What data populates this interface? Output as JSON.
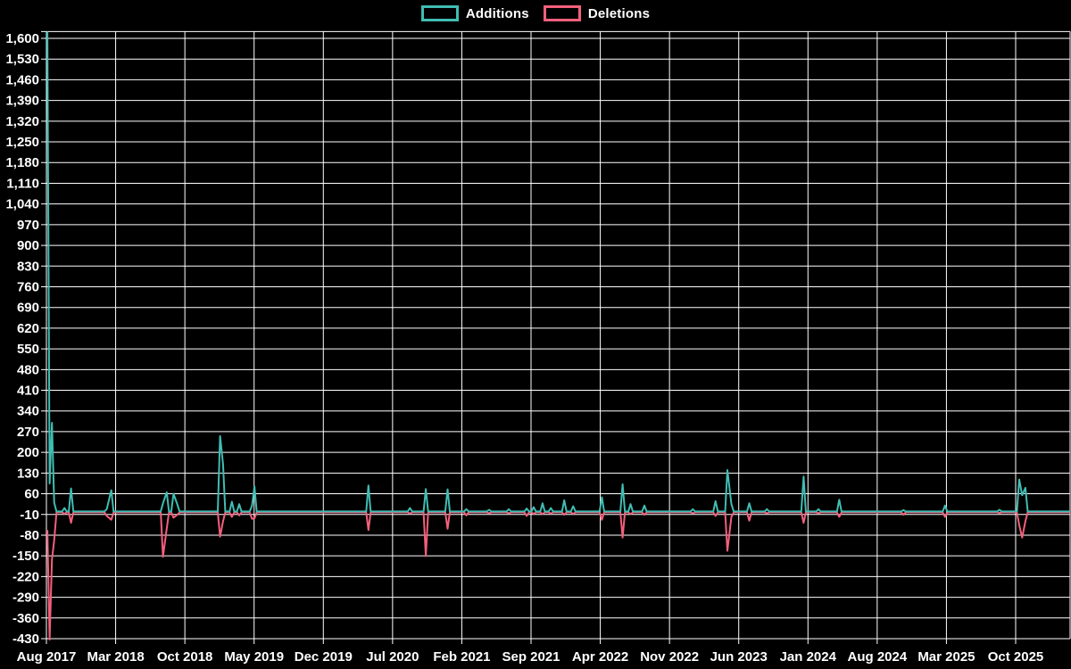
{
  "legend": {
    "items": [
      {
        "label": "Additions",
        "color": "#40bdb3"
      },
      {
        "label": "Deletions",
        "color": "#f4607c"
      }
    ]
  },
  "colors": {
    "background": "#000000",
    "grid": "#ffffff",
    "text": "#ffffff",
    "additions": "#40bdb3",
    "deletions": "#f4607c"
  },
  "chart_data": {
    "type": "line",
    "title": "",
    "xlabel": "",
    "ylabel": "",
    "grid": true,
    "legend_position": "top-center",
    "x_axis": {
      "start": "2017-08",
      "months_per_tick": 7,
      "tick_labels": [
        "Aug 2017",
        "Mar 2018",
        "Oct 2018",
        "May 2019",
        "Dec 2019",
        "Jul 2020",
        "Feb 2021",
        "Sep 2021",
        "Apr 2022",
        "Nov 2022",
        "Jun 2023",
        "Jan 2024",
        "Aug 2024",
        "Mar 2025",
        "Oct 2025"
      ]
    },
    "y_axis": {
      "max": 1623,
      "min": -430,
      "tick_step": 70,
      "tick_labels": [
        "1,600",
        "1,530",
        "1,460",
        "1,390",
        "1,320",
        "1,250",
        "1,180",
        "1,110",
        "1,040",
        "970",
        "900",
        "830",
        "760",
        "690",
        "620",
        "550",
        "480",
        "410",
        "340",
        "270",
        "200",
        "130",
        "60",
        "-10",
        "-80",
        "-150",
        "-220",
        "-290",
        "-360",
        "-430"
      ]
    },
    "series": [
      {
        "name": "Additions",
        "key": "a",
        "color": "#40bdb3"
      },
      {
        "name": "Deletions",
        "key": "d",
        "color": "#f4607c"
      }
    ],
    "unlisted_weeks_value": 0,
    "weekly_points": [
      {
        "date": "2017-08-04",
        "a": 1623,
        "d": -60
      },
      {
        "date": "2017-08-11",
        "a": 95,
        "d": -430
      },
      {
        "date": "2017-08-18",
        "a": 300,
        "d": -160
      },
      {
        "date": "2017-08-25",
        "a": 30,
        "d": -95
      },
      {
        "date": "2017-09-26",
        "a": 12,
        "d": -5
      },
      {
        "date": "2017-10-16",
        "a": 78,
        "d": -35
      },
      {
        "date": "2018-02-04",
        "a": 8,
        "d": -12
      },
      {
        "date": "2018-02-18",
        "a": 72,
        "d": -25
      },
      {
        "date": "2018-07-25",
        "a": 28,
        "d": -150
      },
      {
        "date": "2018-08-06",
        "a": 65,
        "d": -55
      },
      {
        "date": "2018-08-27",
        "a": 60,
        "d": -18
      },
      {
        "date": "2018-09-08",
        "a": 25,
        "d": -8
      },
      {
        "date": "2019-01-18",
        "a": 255,
        "d": -82
      },
      {
        "date": "2019-01-27",
        "a": 160,
        "d": -30
      },
      {
        "date": "2019-02-24",
        "a": 33,
        "d": -15
      },
      {
        "date": "2019-03-16",
        "a": 25,
        "d": -10
      },
      {
        "date": "2019-04-25",
        "a": 20,
        "d": -22
      },
      {
        "date": "2019-05-02",
        "a": 85,
        "d": -20
      },
      {
        "date": "2020-04-18",
        "a": 88,
        "d": -60
      },
      {
        "date": "2020-08-24",
        "a": 12,
        "d": -4
      },
      {
        "date": "2020-10-12",
        "a": 76,
        "d": -148
      },
      {
        "date": "2020-12-18",
        "a": 75,
        "d": -55
      },
      {
        "date": "2021-02-15",
        "a": 8,
        "d": -10
      },
      {
        "date": "2021-04-24",
        "a": 6,
        "d": -3
      },
      {
        "date": "2021-06-24",
        "a": 8,
        "d": -3
      },
      {
        "date": "2021-08-18",
        "a": 10,
        "d": -12
      },
      {
        "date": "2021-09-09",
        "a": 15,
        "d": -5
      },
      {
        "date": "2021-10-06",
        "a": 28,
        "d": -6
      },
      {
        "date": "2021-11-01",
        "a": 12,
        "d": -4
      },
      {
        "date": "2021-12-12",
        "a": 38,
        "d": -8
      },
      {
        "date": "2022-01-09",
        "a": 18,
        "d": -5
      },
      {
        "date": "2022-04-06",
        "a": 48,
        "d": -25
      },
      {
        "date": "2022-06-09",
        "a": 92,
        "d": -85
      },
      {
        "date": "2022-07-03",
        "a": 25,
        "d": -6
      },
      {
        "date": "2022-08-15",
        "a": 20,
        "d": -8
      },
      {
        "date": "2023-01-12",
        "a": 8,
        "d": -3
      },
      {
        "date": "2023-03-21",
        "a": 35,
        "d": -12
      },
      {
        "date": "2023-04-27",
        "a": 140,
        "d": -130
      },
      {
        "date": "2023-05-09",
        "a": 25,
        "d": -15
      },
      {
        "date": "2023-07-03",
        "a": 28,
        "d": -28
      },
      {
        "date": "2023-08-27",
        "a": 8,
        "d": -3
      },
      {
        "date": "2023-12-18",
        "a": 118,
        "d": -35
      },
      {
        "date": "2024-02-03",
        "a": 8,
        "d": -3
      },
      {
        "date": "2024-04-06",
        "a": 40,
        "d": -15
      },
      {
        "date": "2024-10-21",
        "a": 5,
        "d": -8
      },
      {
        "date": "2025-02-27",
        "a": 20,
        "d": -15
      },
      {
        "date": "2025-08-12",
        "a": 6,
        "d": -2
      },
      {
        "date": "2025-10-12",
        "a": 108,
        "d": -43
      },
      {
        "date": "2025-10-21",
        "a": 55,
        "d": -85
      },
      {
        "date": "2025-10-31",
        "a": 80,
        "d": -30
      }
    ]
  }
}
